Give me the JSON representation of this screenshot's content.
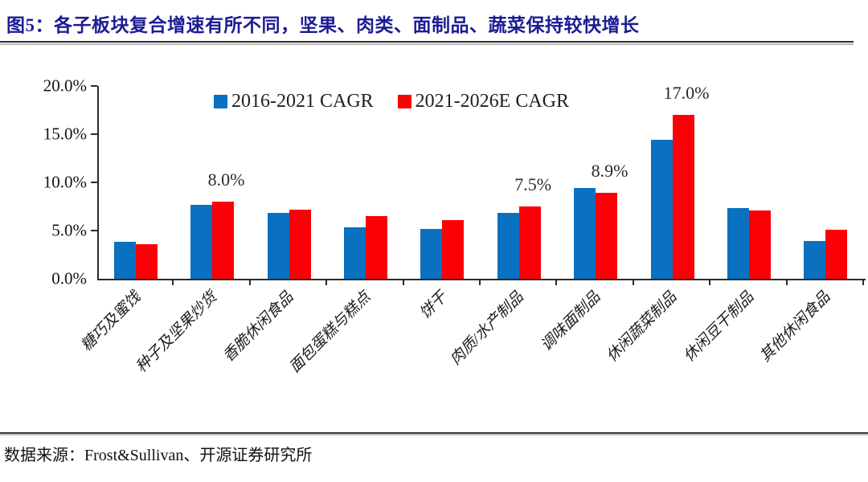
{
  "title": "图5：各子板块复合增速有所不同，坚果、肉类、面制品、蔬菜保持较快增长",
  "source": "数据来源：Frost&Sullivan、开源证券研究所",
  "colors": {
    "series_blue": "#0a70c0",
    "series_red": "#fb0006",
    "title_navy": "#1c1c94",
    "axis": "#2b2b2b"
  },
  "chart_data": {
    "type": "bar",
    "title": "各子板块复合增速",
    "categories": [
      "糖巧及蜜饯",
      "种子及坚果炒货",
      "香脆休闲食品",
      "面包蛋糕与糕点",
      "饼干",
      "肉质/水产制品",
      "调味面制品",
      "休闲蔬菜制品",
      "休闲豆干制品",
      "其他休闲食品"
    ],
    "series": [
      {
        "name": "2016-2021 CAGR",
        "color": "#0a70c0",
        "values": [
          3.8,
          7.7,
          6.8,
          5.3,
          5.2,
          6.8,
          9.4,
          14.4,
          7.3,
          3.9
        ]
      },
      {
        "name": "2021-2026E CAGR",
        "color": "#fb0006",
        "values": [
          3.6,
          8.0,
          7.2,
          6.5,
          6.1,
          7.5,
          8.9,
          17.0,
          7.1,
          5.1
        ]
      }
    ],
    "ylim": [
      0,
      20
    ],
    "ytick_step": 5,
    "ytick_labels": [
      "0.0%",
      "5.0%",
      "10.0%",
      "15.0%",
      "20.0%"
    ],
    "annotations": [
      {
        "category_index": 1,
        "series_index": 1,
        "text": "8.0%"
      },
      {
        "category_index": 5,
        "series_index": 1,
        "text": "7.5%"
      },
      {
        "category_index": 6,
        "series_index": 1,
        "text": "8.9%"
      },
      {
        "category_index": 7,
        "series_index": 1,
        "text": "17.0%"
      }
    ],
    "grid": false,
    "legend_position": "top"
  }
}
